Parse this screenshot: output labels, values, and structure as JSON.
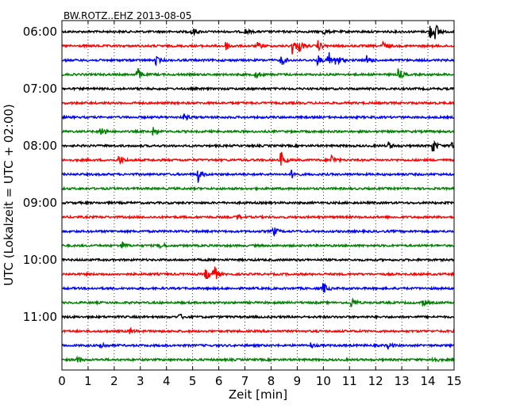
{
  "chart_data": {
    "type": "line",
    "title": "BW.ROTZ..EHZ 2013-08-05",
    "xlabel": "Zeit  [min]",
    "ylabel": "UTC (Lokalzeit = UTC + 02:00)",
    "xlim": [
      0,
      15
    ],
    "xticks": [
      0,
      1,
      2,
      3,
      4,
      5,
      6,
      7,
      8,
      9,
      10,
      11,
      12,
      13,
      14,
      15
    ],
    "yticks": [
      "06:00",
      "07:00",
      "08:00",
      "09:00",
      "10:00",
      "11:00"
    ],
    "grid": "vertical-dotted",
    "trace_colors": [
      "#000000",
      "#ff0000",
      "#0000ff",
      "#008000"
    ],
    "traces": [
      {
        "start": "06:00",
        "events": [
          [
            5,
            0.25
          ],
          [
            7,
            0.2
          ],
          [
            10,
            0.2
          ],
          [
            14.1,
            0.45
          ],
          [
            14.3,
            0.5
          ]
        ]
      },
      {
        "start": "06:15",
        "events": [
          [
            6.3,
            0.25
          ],
          [
            7.5,
            0.2
          ],
          [
            8.8,
            0.6
          ],
          [
            9.1,
            0.35
          ],
          [
            9.8,
            0.35
          ],
          [
            12.3,
            0.3
          ]
        ]
      },
      {
        "start": "06:30",
        "events": [
          [
            3.6,
            0.3
          ],
          [
            8.4,
            0.35
          ],
          [
            9.8,
            0.3
          ],
          [
            10.2,
            0.6
          ],
          [
            10.5,
            0.5
          ],
          [
            11.7,
            0.3
          ]
        ]
      },
      {
        "start": "06:45",
        "events": [
          [
            2.9,
            0.45
          ],
          [
            7.4,
            0.35
          ],
          [
            12.9,
            0.35
          ]
        ]
      },
      {
        "start": "07:00",
        "events": []
      },
      {
        "start": "07:15",
        "events": []
      },
      {
        "start": "07:30",
        "events": [
          [
            4.7,
            0.2
          ]
        ]
      },
      {
        "start": "07:45",
        "events": [
          [
            1.5,
            0.45
          ],
          [
            3.5,
            0.25
          ]
        ]
      },
      {
        "start": "08:00",
        "events": [
          [
            12.5,
            0.25
          ],
          [
            14.2,
            0.45
          ],
          [
            14.9,
            0.45
          ]
        ]
      },
      {
        "start": "08:15",
        "events": [
          [
            2.2,
            0.3
          ],
          [
            8.4,
            0.5
          ],
          [
            10.3,
            0.4
          ]
        ]
      },
      {
        "start": "08:30",
        "events": [
          [
            5.2,
            0.55
          ],
          [
            8.8,
            0.25
          ]
        ]
      },
      {
        "start": "08:45",
        "events": []
      },
      {
        "start": "09:00",
        "events": []
      },
      {
        "start": "09:15",
        "events": [
          [
            6.7,
            0.2
          ]
        ]
      },
      {
        "start": "09:30",
        "events": [
          [
            8.1,
            0.3
          ]
        ]
      },
      {
        "start": "09:45",
        "events": [
          [
            2.3,
            0.25
          ],
          [
            3.8,
            0.2
          ]
        ]
      },
      {
        "start": "10:00",
        "events": []
      },
      {
        "start": "10:15",
        "events": [
          [
            5.5,
            0.5
          ],
          [
            5.8,
            0.75
          ]
        ]
      },
      {
        "start": "10:30",
        "events": [
          [
            10,
            0.4
          ]
        ]
      },
      {
        "start": "10:45",
        "events": [
          [
            11.1,
            0.35
          ],
          [
            13.8,
            0.25
          ]
        ]
      },
      {
        "start": "11:00",
        "events": [
          [
            4.5,
            0.2
          ]
        ]
      },
      {
        "start": "11:15",
        "events": [
          [
            2.6,
            0.2
          ]
        ]
      },
      {
        "start": "11:30",
        "events": [
          [
            1.5,
            0.25
          ],
          [
            9.5,
            0.2
          ],
          [
            12.5,
            0.2
          ]
        ]
      },
      {
        "start": "11:45",
        "events": [
          [
            0.6,
            0.2
          ],
          [
            14.2,
            0.25
          ]
        ]
      }
    ]
  }
}
